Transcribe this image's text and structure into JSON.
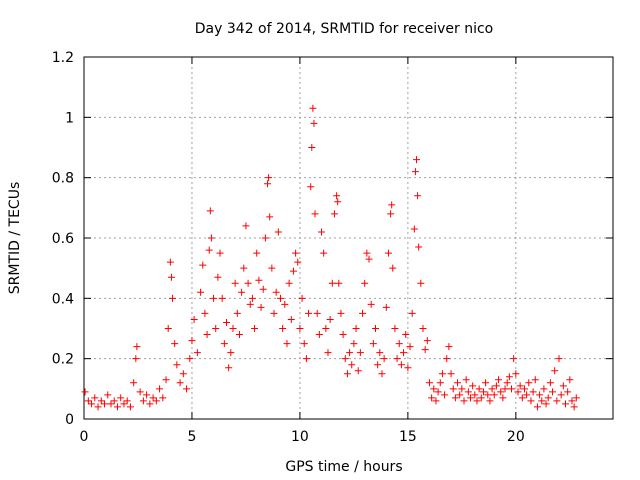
{
  "chart_data": {
    "type": "scatter",
    "title": "Day 342 of 2014, SRMTID for receiver nico",
    "xlabel": "GPS time / hours",
    "ylabel": "SRMTID / TECUs",
    "xlim": [
      0,
      24.5
    ],
    "ylim": [
      0,
      1.2
    ],
    "x_ticks": [
      0,
      5,
      10,
      15,
      20
    ],
    "x_tick_labels": [
      "0",
      "5",
      "10",
      "15",
      "20"
    ],
    "y_ticks": [
      0,
      0.2,
      0.4,
      0.6,
      0.8,
      1.0,
      1.2
    ],
    "y_tick_labels": [
      "0",
      "0.2",
      "0.4",
      "0.6",
      "0.8",
      "1",
      "1.2"
    ],
    "grid": true,
    "marker": "+",
    "series": [
      {
        "name": "SRMTID",
        "color": "#ff0000",
        "points": [
          [
            0.05,
            0.09
          ],
          [
            0.2,
            0.06
          ],
          [
            0.35,
            0.05
          ],
          [
            0.5,
            0.07
          ],
          [
            0.65,
            0.04
          ],
          [
            0.8,
            0.06
          ],
          [
            0.95,
            0.05
          ],
          [
            1.1,
            0.08
          ],
          [
            1.25,
            0.05
          ],
          [
            1.4,
            0.06
          ],
          [
            1.55,
            0.04
          ],
          [
            1.7,
            0.07
          ],
          [
            1.85,
            0.05
          ],
          [
            2.0,
            0.06
          ],
          [
            2.15,
            0.04
          ],
          [
            2.3,
            0.12
          ],
          [
            2.4,
            0.2
          ],
          [
            2.45,
            0.24
          ],
          [
            2.6,
            0.09
          ],
          [
            2.75,
            0.06
          ],
          [
            2.9,
            0.08
          ],
          [
            3.05,
            0.05
          ],
          [
            3.2,
            0.07
          ],
          [
            3.35,
            0.06
          ],
          [
            3.5,
            0.1
          ],
          [
            3.65,
            0.07
          ],
          [
            3.8,
            0.13
          ],
          [
            3.9,
            0.3
          ],
          [
            4.0,
            0.52
          ],
          [
            4.05,
            0.47
          ],
          [
            4.1,
            0.4
          ],
          [
            4.2,
            0.25
          ],
          [
            4.3,
            0.18
          ],
          [
            4.45,
            0.12
          ],
          [
            4.6,
            0.15
          ],
          [
            4.75,
            0.1
          ],
          [
            4.9,
            0.2
          ],
          [
            5.0,
            0.26
          ],
          [
            5.1,
            0.33
          ],
          [
            5.25,
            0.22
          ],
          [
            5.4,
            0.42
          ],
          [
            5.5,
            0.51
          ],
          [
            5.6,
            0.35
          ],
          [
            5.7,
            0.28
          ],
          [
            5.8,
            0.56
          ],
          [
            5.85,
            0.69
          ],
          [
            5.9,
            0.6
          ],
          [
            6.0,
            0.4
          ],
          [
            6.1,
            0.3
          ],
          [
            6.2,
            0.47
          ],
          [
            6.3,
            0.55
          ],
          [
            6.4,
            0.4
          ],
          [
            6.5,
            0.25
          ],
          [
            6.6,
            0.32
          ],
          [
            6.7,
            0.17
          ],
          [
            6.8,
            0.22
          ],
          [
            6.9,
            0.3
          ],
          [
            7.0,
            0.45
          ],
          [
            7.1,
            0.35
          ],
          [
            7.2,
            0.28
          ],
          [
            7.3,
            0.42
          ],
          [
            7.4,
            0.5
          ],
          [
            7.5,
            0.64
          ],
          [
            7.6,
            0.45
          ],
          [
            7.7,
            0.38
          ],
          [
            7.8,
            0.4
          ],
          [
            7.9,
            0.3
          ],
          [
            8.0,
            0.55
          ],
          [
            8.1,
            0.46
          ],
          [
            8.2,
            0.37
          ],
          [
            8.3,
            0.43
          ],
          [
            8.4,
            0.6
          ],
          [
            8.5,
            0.78
          ],
          [
            8.55,
            0.8
          ],
          [
            8.6,
            0.67
          ],
          [
            8.7,
            0.5
          ],
          [
            8.8,
            0.35
          ],
          [
            8.9,
            0.42
          ],
          [
            9.0,
            0.62
          ],
          [
            9.1,
            0.4
          ],
          [
            9.2,
            0.3
          ],
          [
            9.3,
            0.38
          ],
          [
            9.4,
            0.25
          ],
          [
            9.5,
            0.45
          ],
          [
            9.6,
            0.33
          ],
          [
            9.7,
            0.49
          ],
          [
            9.8,
            0.55
          ],
          [
            9.9,
            0.52
          ],
          [
            10.0,
            0.3
          ],
          [
            10.1,
            0.4
          ],
          [
            10.2,
            0.25
          ],
          [
            10.3,
            0.2
          ],
          [
            10.4,
            0.35
          ],
          [
            10.5,
            0.77
          ],
          [
            10.55,
            0.9
          ],
          [
            10.6,
            1.03
          ],
          [
            10.65,
            0.98
          ],
          [
            10.7,
            0.68
          ],
          [
            10.8,
            0.35
          ],
          [
            10.9,
            0.28
          ],
          [
            11.0,
            0.62
          ],
          [
            11.1,
            0.55
          ],
          [
            11.2,
            0.3
          ],
          [
            11.3,
            0.22
          ],
          [
            11.4,
            0.33
          ],
          [
            11.5,
            0.45
          ],
          [
            11.6,
            0.68
          ],
          [
            11.7,
            0.74
          ],
          [
            11.75,
            0.72
          ],
          [
            11.8,
            0.45
          ],
          [
            11.9,
            0.35
          ],
          [
            12.0,
            0.28
          ],
          [
            12.1,
            0.2
          ],
          [
            12.2,
            0.15
          ],
          [
            12.3,
            0.22
          ],
          [
            12.4,
            0.18
          ],
          [
            12.5,
            0.25
          ],
          [
            12.6,
            0.3
          ],
          [
            12.7,
            0.16
          ],
          [
            12.8,
            0.22
          ],
          [
            12.9,
            0.35
          ],
          [
            13.0,
            0.45
          ],
          [
            13.1,
            0.55
          ],
          [
            13.2,
            0.53
          ],
          [
            13.3,
            0.38
          ],
          [
            13.4,
            0.25
          ],
          [
            13.5,
            0.3
          ],
          [
            13.6,
            0.18
          ],
          [
            13.7,
            0.22
          ],
          [
            13.8,
            0.15
          ],
          [
            13.9,
            0.2
          ],
          [
            14.0,
            0.37
          ],
          [
            14.1,
            0.55
          ],
          [
            14.2,
            0.68
          ],
          [
            14.25,
            0.71
          ],
          [
            14.3,
            0.5
          ],
          [
            14.4,
            0.3
          ],
          [
            14.5,
            0.2
          ],
          [
            14.6,
            0.25
          ],
          [
            14.7,
            0.18
          ],
          [
            14.8,
            0.22
          ],
          [
            14.9,
            0.28
          ],
          [
            15.0,
            0.17
          ],
          [
            15.1,
            0.24
          ],
          [
            15.2,
            0.35
          ],
          [
            15.3,
            0.63
          ],
          [
            15.35,
            0.82
          ],
          [
            15.4,
            0.86
          ],
          [
            15.45,
            0.74
          ],
          [
            15.5,
            0.57
          ],
          [
            15.6,
            0.45
          ],
          [
            15.7,
            0.3
          ],
          [
            15.8,
            0.23
          ],
          [
            15.9,
            0.26
          ],
          [
            16.0,
            0.12
          ],
          [
            16.1,
            0.07
          ],
          [
            16.2,
            0.1
          ],
          [
            16.3,
            0.06
          ],
          [
            16.4,
            0.09
          ],
          [
            16.5,
            0.12
          ],
          [
            16.6,
            0.15
          ],
          [
            16.7,
            0.08
          ],
          [
            16.8,
            0.2
          ],
          [
            16.9,
            0.24
          ],
          [
            17.0,
            0.15
          ],
          [
            17.1,
            0.1
          ],
          [
            17.2,
            0.07
          ],
          [
            17.3,
            0.12
          ],
          [
            17.4,
            0.08
          ],
          [
            17.5,
            0.1
          ],
          [
            17.6,
            0.06
          ],
          [
            17.7,
            0.13
          ],
          [
            17.8,
            0.09
          ],
          [
            17.9,
            0.07
          ],
          [
            18.0,
            0.11
          ],
          [
            18.1,
            0.08
          ],
          [
            18.2,
            0.06
          ],
          [
            18.3,
            0.1
          ],
          [
            18.4,
            0.07
          ],
          [
            18.5,
            0.09
          ],
          [
            18.6,
            0.12
          ],
          [
            18.7,
            0.08
          ],
          [
            18.8,
            0.06
          ],
          [
            18.9,
            0.1
          ],
          [
            19.0,
            0.08
          ],
          [
            19.1,
            0.11
          ],
          [
            19.2,
            0.13
          ],
          [
            19.3,
            0.09
          ],
          [
            19.4,
            0.07
          ],
          [
            19.5,
            0.1
          ],
          [
            19.6,
            0.12
          ],
          [
            19.7,
            0.14
          ],
          [
            19.8,
            0.1
          ],
          [
            19.9,
            0.2
          ],
          [
            20.0,
            0.15
          ],
          [
            20.1,
            0.09
          ],
          [
            20.2,
            0.11
          ],
          [
            20.3,
            0.07
          ],
          [
            20.4,
            0.1
          ],
          [
            20.5,
            0.08
          ],
          [
            20.6,
            0.12
          ],
          [
            20.7,
            0.06
          ],
          [
            20.8,
            0.09
          ],
          [
            20.9,
            0.13
          ],
          [
            21.0,
            0.04
          ],
          [
            21.1,
            0.08
          ],
          [
            21.2,
            0.06
          ],
          [
            21.3,
            0.1
          ],
          [
            21.4,
            0.05
          ],
          [
            21.5,
            0.07
          ],
          [
            21.6,
            0.12
          ],
          [
            21.7,
            0.09
          ],
          [
            21.8,
            0.16
          ],
          [
            21.9,
            0.06
          ],
          [
            22.0,
            0.2
          ],
          [
            22.1,
            0.08
          ],
          [
            22.2,
            0.11
          ],
          [
            22.3,
            0.05
          ],
          [
            22.4,
            0.09
          ],
          [
            22.5,
            0.13
          ],
          [
            22.6,
            0.06
          ],
          [
            22.7,
            0.04
          ],
          [
            22.8,
            0.07
          ]
        ]
      }
    ]
  }
}
